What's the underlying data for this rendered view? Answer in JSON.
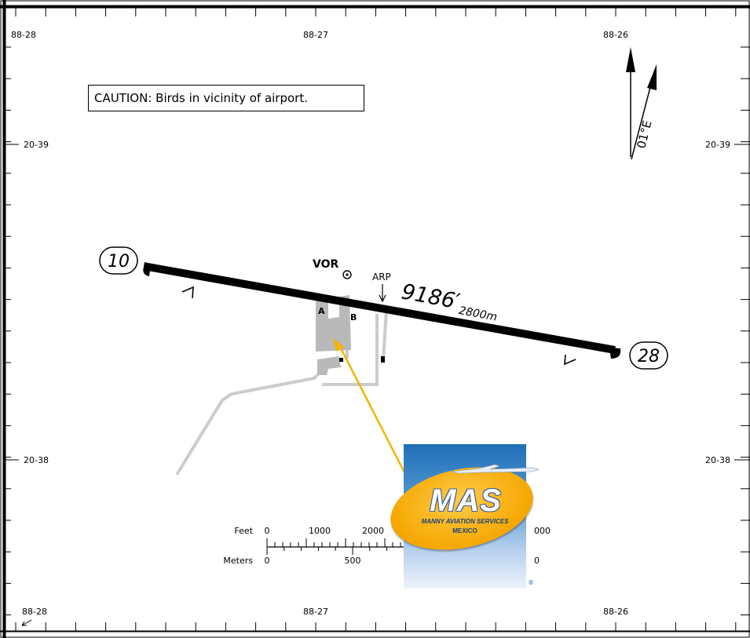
{
  "map": {
    "caution": "CAUTION: Birds in vicinity of airport.",
    "magnetic_variation": "01°E",
    "longitude_labels": [
      "88-28",
      "88-27",
      "88-26"
    ],
    "latitude_labels": [
      "20-39",
      "20-38"
    ],
    "runway": {
      "end_west": "10",
      "end_east": "28",
      "length_ft": "9186′",
      "length_m": "2800m"
    },
    "navaid": "VOR",
    "arp": "ARP",
    "taxiways": [
      "A",
      "B"
    ],
    "scale": {
      "feet_label": "Feet",
      "meters_label": "Meters",
      "feet_ticks": [
        "0",
        "1000",
        "2000",
        "000"
      ],
      "meters_ticks": [
        "0",
        "500",
        "0"
      ]
    },
    "colors": {
      "runway": "#000000",
      "pavement": "#b9b9b9",
      "roads": "#cccccc",
      "arrow": "#f5b400"
    }
  },
  "logo": {
    "name": "MAS",
    "line1": "MANNY AVIATION SERVICES",
    "line2": "MEXICO",
    "reg": "®"
  }
}
